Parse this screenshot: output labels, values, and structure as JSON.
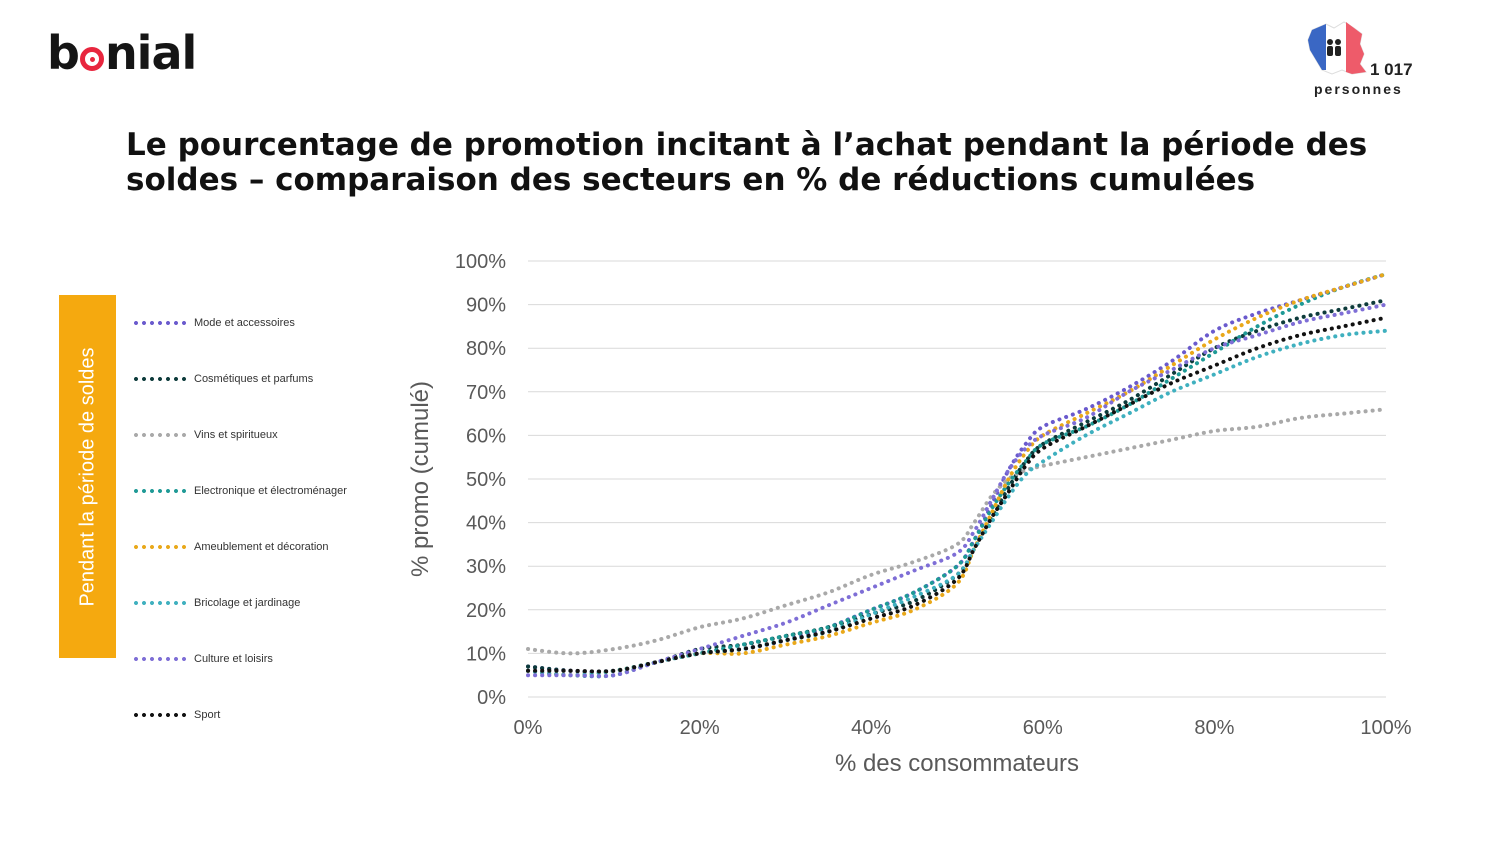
{
  "brand": {
    "logo_pre": "b",
    "logo_post": "nial"
  },
  "sample": {
    "count": "1 017",
    "unit": "personnes"
  },
  "page_title": "Le pourcentage de promotion incitant à l’achat pendant la période des soldes – comparaison des secteurs en % de réductions cumulées",
  "side_label": "Pendant la période de soldes",
  "colors": {
    "brand_red": "#e8263e",
    "accent_orange": "#f5a90f"
  },
  "chart_data": {
    "type": "line",
    "line_style": "dotted",
    "grid": "horizontal",
    "legend_position": "left",
    "xlabel": "% des consommateurs",
    "ylabel": "% promo (cumulé)",
    "xlim": [
      0,
      100
    ],
    "ylim": [
      0,
      100
    ],
    "xticks": [
      0,
      20,
      40,
      60,
      80,
      100
    ],
    "yticks": [
      0,
      10,
      20,
      30,
      40,
      50,
      60,
      70,
      80,
      90,
      100
    ],
    "xtick_labels": [
      "0%",
      "20%",
      "40%",
      "60%",
      "80%",
      "100%"
    ],
    "ytick_labels": [
      "0%",
      "10%",
      "20%",
      "30%",
      "40%",
      "50%",
      "60%",
      "70%",
      "80%",
      "90%",
      "100%"
    ],
    "x": [
      0,
      5,
      10,
      15,
      20,
      25,
      30,
      35,
      40,
      45,
      50,
      52,
      54,
      56,
      58,
      60,
      65,
      70,
      75,
      80,
      85,
      90,
      95,
      100
    ],
    "series": [
      {
        "name": "Mode et accessoires",
        "color": "#6a5acd",
        "values": [
          7,
          6,
          6,
          8,
          10,
          11,
          13,
          16,
          20,
          24,
          30,
          36,
          44,
          52,
          58,
          62,
          66,
          71,
          77,
          84,
          88,
          91,
          94,
          97
        ]
      },
      {
        "name": "Cosmétiques et parfums",
        "color": "#0d3b3b",
        "values": [
          7,
          6,
          6,
          8,
          11,
          12,
          14,
          16,
          19,
          22,
          28,
          34,
          41,
          48,
          54,
          58,
          63,
          68,
          74,
          80,
          84,
          87,
          89,
          91
        ]
      },
      {
        "name": "Vins et spiritueux",
        "color": "#a9a9a9",
        "values": [
          11,
          10,
          11,
          13,
          16,
          18,
          21,
          24,
          28,
          31,
          35,
          40,
          46,
          50,
          52,
          53,
          55,
          57,
          59,
          61,
          62,
          64,
          65,
          66
        ]
      },
      {
        "name": "Electronique et électroménager",
        "color": "#1f9a96",
        "values": [
          6,
          5,
          5,
          8,
          10,
          12,
          14,
          16,
          20,
          24,
          30,
          36,
          43,
          49,
          54,
          58,
          62,
          67,
          73,
          79,
          85,
          90,
          94,
          97
        ]
      },
      {
        "name": "Ameublement et décoration",
        "color": "#e9a81a",
        "values": [
          6,
          5,
          6,
          8,
          10,
          10,
          12,
          14,
          17,
          20,
          26,
          34,
          42,
          50,
          56,
          60,
          65,
          70,
          76,
          82,
          87,
          91,
          94,
          97
        ]
      },
      {
        "name": "Bricolage et jardinage",
        "color": "#3fb0bf",
        "values": [
          6,
          5,
          6,
          8,
          10,
          11,
          13,
          15,
          19,
          23,
          28,
          34,
          40,
          46,
          51,
          54,
          60,
          65,
          70,
          74,
          78,
          81,
          83,
          84
        ]
      },
      {
        "name": "Culture et loisirs",
        "color": "#7e6ed6",
        "values": [
          5,
          5,
          5,
          8,
          11,
          14,
          17,
          21,
          25,
          29,
          33,
          38,
          45,
          52,
          57,
          60,
          64,
          70,
          75,
          80,
          83,
          86,
          88,
          90
        ]
      },
      {
        "name": "Sport",
        "color": "#111111",
        "values": [
          6,
          6,
          6,
          8,
          10,
          11,
          13,
          15,
          18,
          21,
          27,
          34,
          41,
          47,
          53,
          57,
          62,
          67,
          72,
          76,
          80,
          83,
          85,
          87
        ]
      }
    ]
  }
}
